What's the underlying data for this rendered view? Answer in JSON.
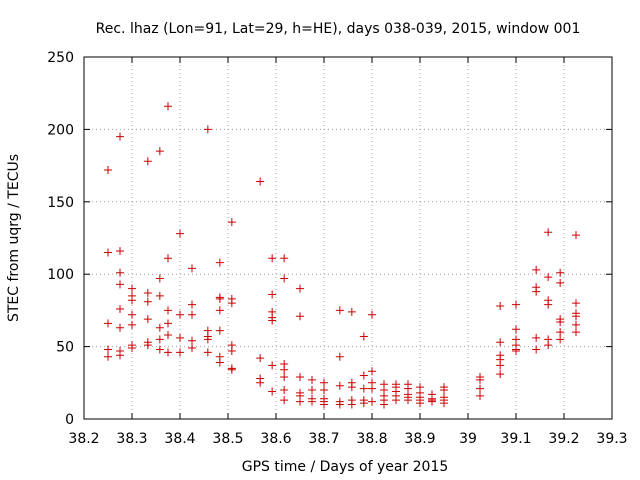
{
  "chart_data": {
    "type": "scatter",
    "title": "Rec. lhaz (Lon=91, Lat=29, h=HE), days 038-039, 2015, window 001",
    "xlabel": "GPS time / Days of year 2015",
    "ylabel": "STEC from uqrg / TECUs",
    "xlim": [
      38.2,
      39.3
    ],
    "ylim": [
      0,
      250
    ],
    "xticks": [
      "38.2",
      "38.3",
      "38.4",
      "38.5",
      "38.6",
      "38.7",
      "38.8",
      "38.9",
      "39",
      "39.1",
      "39.2",
      "39.3"
    ],
    "yticks": [
      "0",
      "50",
      "100",
      "150",
      "200",
      "250"
    ],
    "grid": true,
    "marker": "plus",
    "color": "#cc0000",
    "points": [
      [
        38.25,
        172
      ],
      [
        38.25,
        115
      ],
      [
        38.25,
        66
      ],
      [
        38.25,
        48
      ],
      [
        38.25,
        43
      ],
      [
        38.275,
        195
      ],
      [
        38.275,
        116
      ],
      [
        38.275,
        101
      ],
      [
        38.275,
        93
      ],
      [
        38.275,
        76
      ],
      [
        38.275,
        63
      ],
      [
        38.275,
        47
      ],
      [
        38.275,
        44
      ],
      [
        38.3,
        90
      ],
      [
        38.3,
        85
      ],
      [
        38.3,
        82
      ],
      [
        38.3,
        72
      ],
      [
        38.3,
        65
      ],
      [
        38.3,
        51
      ],
      [
        38.3,
        49
      ],
      [
        38.333,
        178
      ],
      [
        38.333,
        87
      ],
      [
        38.333,
        81
      ],
      [
        38.333,
        69
      ],
      [
        38.333,
        53
      ],
      [
        38.333,
        51
      ],
      [
        38.358,
        185
      ],
      [
        38.358,
        97
      ],
      [
        38.358,
        85
      ],
      [
        38.358,
        63
      ],
      [
        38.358,
        55
      ],
      [
        38.358,
        48
      ],
      [
        38.375,
        216
      ],
      [
        38.375,
        111
      ],
      [
        38.375,
        75
      ],
      [
        38.375,
        66
      ],
      [
        38.375,
        58
      ],
      [
        38.375,
        46
      ],
      [
        38.4,
        128
      ],
      [
        38.4,
        72
      ],
      [
        38.4,
        56
      ],
      [
        38.4,
        46
      ],
      [
        38.425,
        104
      ],
      [
        38.425,
        79
      ],
      [
        38.425,
        72
      ],
      [
        38.425,
        54
      ],
      [
        38.425,
        49
      ],
      [
        38.458,
        200
      ],
      [
        38.458,
        61
      ],
      [
        38.458,
        57
      ],
      [
        38.458,
        55
      ],
      [
        38.458,
        46
      ],
      [
        38.483,
        108
      ],
      [
        38.483,
        84
      ],
      [
        38.483,
        83
      ],
      [
        38.483,
        75
      ],
      [
        38.483,
        61
      ],
      [
        38.483,
        43
      ],
      [
        38.483,
        39
      ],
      [
        38.508,
        136
      ],
      [
        38.508,
        83
      ],
      [
        38.508,
        80
      ],
      [
        38.508,
        51
      ],
      [
        38.508,
        47
      ],
      [
        38.508,
        35
      ],
      [
        38.508,
        34
      ],
      [
        38.567,
        164
      ],
      [
        38.567,
        42
      ],
      [
        38.567,
        28
      ],
      [
        38.567,
        25
      ],
      [
        38.592,
        111
      ],
      [
        38.592,
        86
      ],
      [
        38.592,
        74
      ],
      [
        38.592,
        70
      ],
      [
        38.592,
        68
      ],
      [
        38.592,
        37
      ],
      [
        38.592,
        19
      ],
      [
        38.617,
        111
      ],
      [
        38.617,
        97
      ],
      [
        38.617,
        38
      ],
      [
        38.617,
        34
      ],
      [
        38.617,
        29
      ],
      [
        38.617,
        20
      ],
      [
        38.617,
        13
      ],
      [
        38.65,
        90
      ],
      [
        38.65,
        71
      ],
      [
        38.65,
        29
      ],
      [
        38.65,
        18
      ],
      [
        38.65,
        16
      ],
      [
        38.65,
        12
      ],
      [
        38.675,
        27
      ],
      [
        38.675,
        20
      ],
      [
        38.675,
        14
      ],
      [
        38.675,
        12
      ],
      [
        38.7,
        25
      ],
      [
        38.7,
        20
      ],
      [
        38.7,
        14
      ],
      [
        38.7,
        12
      ],
      [
        38.7,
        10
      ],
      [
        38.733,
        75
      ],
      [
        38.733,
        43
      ],
      [
        38.733,
        23
      ],
      [
        38.733,
        12
      ],
      [
        38.733,
        10
      ],
      [
        38.758,
        74
      ],
      [
        38.758,
        25
      ],
      [
        38.758,
        22
      ],
      [
        38.758,
        13
      ],
      [
        38.758,
        10
      ],
      [
        38.783,
        57
      ],
      [
        38.783,
        30
      ],
      [
        38.783,
        21
      ],
      [
        38.783,
        13
      ],
      [
        38.783,
        11
      ],
      [
        38.8,
        72
      ],
      [
        38.8,
        33
      ],
      [
        38.8,
        25
      ],
      [
        38.8,
        21
      ],
      [
        38.8,
        12
      ],
      [
        38.825,
        24
      ],
      [
        38.825,
        20
      ],
      [
        38.825,
        16
      ],
      [
        38.825,
        13
      ],
      [
        38.825,
        10
      ],
      [
        38.85,
        24
      ],
      [
        38.85,
        22
      ],
      [
        38.85,
        19
      ],
      [
        38.85,
        16
      ],
      [
        38.85,
        13
      ],
      [
        38.875,
        24
      ],
      [
        38.875,
        21
      ],
      [
        38.875,
        17
      ],
      [
        38.875,
        15
      ],
      [
        38.875,
        13
      ],
      [
        38.9,
        22
      ],
      [
        38.9,
        18
      ],
      [
        38.9,
        15
      ],
      [
        38.9,
        13
      ],
      [
        38.9,
        11
      ],
      [
        38.925,
        17
      ],
      [
        38.925,
        14
      ],
      [
        38.925,
        13
      ],
      [
        38.925,
        12
      ],
      [
        38.95,
        22
      ],
      [
        38.95,
        20
      ],
      [
        38.95,
        15
      ],
      [
        38.95,
        13
      ],
      [
        38.95,
        11
      ],
      [
        39.025,
        29
      ],
      [
        39.025,
        27
      ],
      [
        39.025,
        21
      ],
      [
        39.025,
        16
      ],
      [
        39.067,
        78
      ],
      [
        39.067,
        53
      ],
      [
        39.067,
        44
      ],
      [
        39.067,
        41
      ],
      [
        39.067,
        37
      ],
      [
        39.067,
        31
      ],
      [
        39.1,
        79
      ],
      [
        39.1,
        62
      ],
      [
        39.1,
        55
      ],
      [
        39.1,
        51
      ],
      [
        39.1,
        48
      ],
      [
        39.1,
        47
      ],
      [
        39.142,
        103
      ],
      [
        39.142,
        91
      ],
      [
        39.142,
        88
      ],
      [
        39.142,
        56
      ],
      [
        39.142,
        48
      ],
      [
        39.167,
        129
      ],
      [
        39.167,
        98
      ],
      [
        39.167,
        82
      ],
      [
        39.167,
        79
      ],
      [
        39.167,
        55
      ],
      [
        39.167,
        51
      ],
      [
        39.192,
        101
      ],
      [
        39.192,
        94
      ],
      [
        39.192,
        69
      ],
      [
        39.192,
        67
      ],
      [
        39.192,
        60
      ],
      [
        39.192,
        55
      ],
      [
        39.225,
        127
      ],
      [
        39.225,
        80
      ],
      [
        39.225,
        73
      ],
      [
        39.225,
        71
      ],
      [
        39.225,
        65
      ],
      [
        39.225,
        60
      ]
    ]
  }
}
